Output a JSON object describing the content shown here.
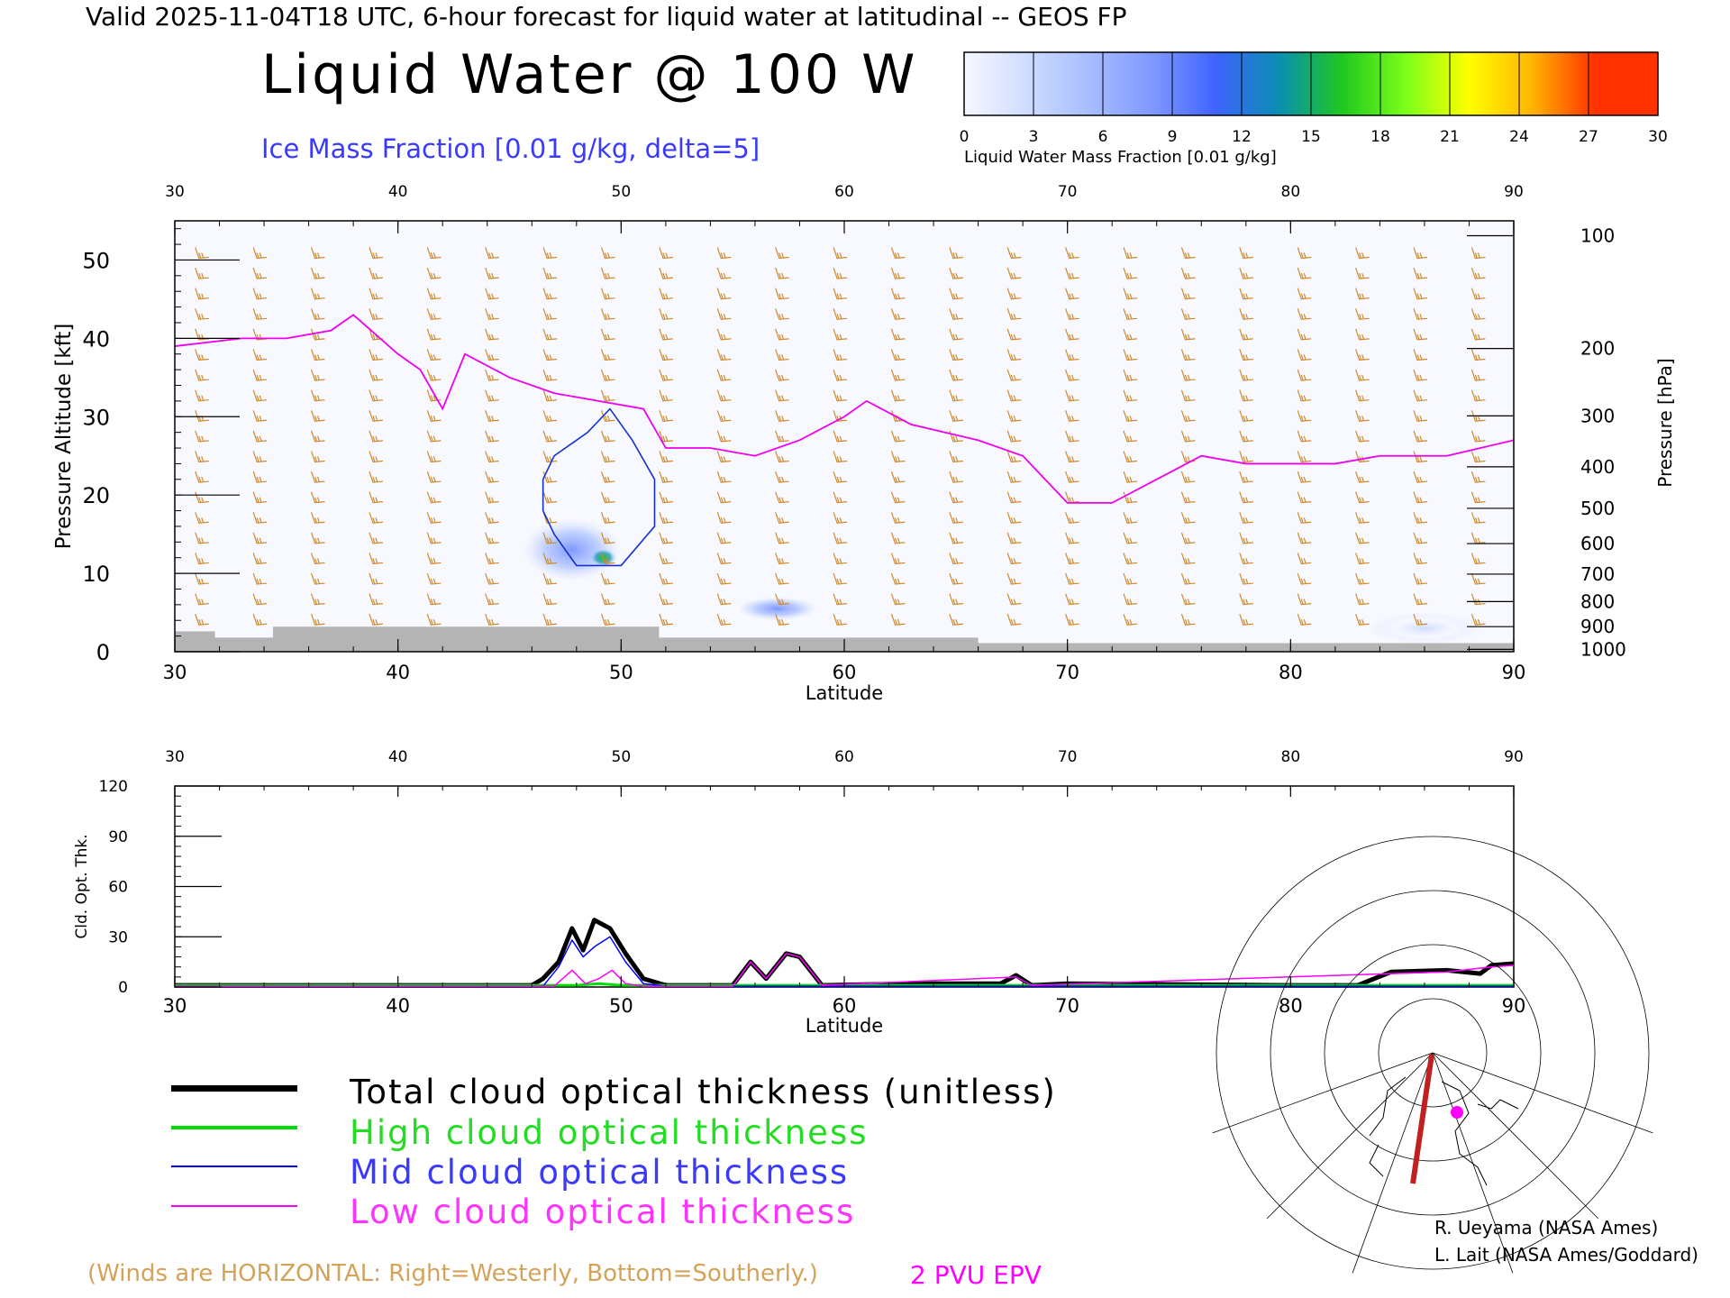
{
  "header": "Valid 2025-11-04T18 UTC, 6-hour forecast for liquid water at latitudinal -- GEOS FP",
  "title": "Liquid Water @ 100 W",
  "subtitle": "Ice Mass Fraction [0.01 g/kg, delta=5]",
  "colorbar": {
    "label": "Liquid Water Mass Fraction [0.01 g/kg]",
    "ticks": [
      "0",
      "3",
      "6",
      "9",
      "12",
      "15",
      "18",
      "21",
      "24",
      "27",
      "30"
    ],
    "colors": [
      "#f6f8ff",
      "#cfdcff",
      "#a6bdff",
      "#7f98ff",
      "#3d63ff",
      "#0b8fb0",
      "#1fc81f",
      "#7cff1a",
      "#ffff00",
      "#ffb400",
      "#ff3200"
    ]
  },
  "chart_data": [
    {
      "type": "heatmap",
      "name": "cross-section",
      "xlabel": "Latitude",
      "ylabel": "Pressure Altitude [kft]",
      "y2label": "Pressure [hPa]",
      "xlim": [
        30,
        90
      ],
      "ylim": [
        0,
        55
      ],
      "x_ticks": [
        "30",
        "40",
        "50",
        "60",
        "70",
        "80",
        "90"
      ],
      "y_ticks": [
        "0",
        "10",
        "20",
        "30",
        "40",
        "50"
      ],
      "pressure_ticks": [
        "100",
        "200",
        "300",
        "400",
        "500",
        "600",
        "700",
        "800",
        "900",
        "1000"
      ],
      "pressure_positions_kft": [
        53.1,
        38.7,
        30.1,
        23.6,
        18.3,
        13.8,
        9.9,
        6.4,
        3.2,
        0.3
      ],
      "pv_line": [
        [
          30,
          39
        ],
        [
          33,
          40
        ],
        [
          35,
          40
        ],
        [
          37,
          41
        ],
        [
          38,
          43
        ],
        [
          40,
          38
        ],
        [
          41,
          36
        ],
        [
          42,
          31
        ],
        [
          43,
          38
        ],
        [
          45,
          35
        ],
        [
          47,
          33
        ],
        [
          49,
          32
        ],
        [
          51,
          31
        ],
        [
          52,
          26
        ],
        [
          54,
          26
        ],
        [
          56,
          25
        ],
        [
          58,
          27
        ],
        [
          60,
          30
        ],
        [
          61,
          32
        ],
        [
          63,
          29
        ],
        [
          66,
          27
        ],
        [
          68,
          25
        ],
        [
          70,
          19
        ],
        [
          72,
          19
        ],
        [
          74,
          22
        ],
        [
          76,
          25
        ],
        [
          78,
          24
        ],
        [
          80,
          24
        ],
        [
          82,
          24
        ],
        [
          84,
          25
        ],
        [
          87,
          25
        ],
        [
          90,
          27
        ]
      ],
      "ice_contour": [
        [
          46.5,
          22
        ],
        [
          47,
          25
        ],
        [
          48.5,
          28
        ],
        [
          49.5,
          31
        ],
        [
          50.5,
          27
        ],
        [
          51.5,
          22
        ],
        [
          51.5,
          16
        ],
        [
          50,
          11
        ],
        [
          48,
          11
        ],
        [
          47,
          15
        ],
        [
          46.5,
          18
        ],
        [
          46.5,
          22
        ]
      ],
      "liquid_blobs": [
        {
          "lat": 47.8,
          "alt": 13,
          "rlat": 2.2,
          "ralt": 4,
          "value": 10
        },
        {
          "lat": 49.2,
          "alt": 12,
          "rlat": 0.6,
          "ralt": 1.2,
          "value": 18
        },
        {
          "lat": 57,
          "alt": 5.5,
          "rlat": 1.8,
          "ralt": 1.5,
          "value": 10
        },
        {
          "lat": 86,
          "alt": 3,
          "rlat": 2.5,
          "ralt": 2,
          "value": 4
        }
      ],
      "terrain": [
        [
          30,
          2.6
        ],
        [
          31.8,
          2.6
        ],
        [
          31.8,
          1.8
        ],
        [
          34.4,
          1.8
        ],
        [
          34.4,
          3.2
        ],
        [
          51.7,
          3.2
        ],
        [
          51.7,
          2.6
        ],
        [
          51.7,
          1.8
        ],
        [
          66,
          1.8
        ],
        [
          66,
          1.1
        ],
        [
          90,
          1.1
        ]
      ]
    },
    {
      "type": "line",
      "name": "cloud-optical-thickness",
      "xlabel": "Latitude",
      "ylabel": "Cld. Opt. Thk.",
      "xlim": [
        30,
        90
      ],
      "ylim": [
        0,
        120
      ],
      "x_ticks": [
        "30",
        "40",
        "50",
        "60",
        "70",
        "80",
        "90"
      ],
      "y_ticks": [
        "0",
        "30",
        "60",
        "90",
        "120"
      ],
      "series": [
        {
          "name": "Total cloud optical thickness (unitless)",
          "color": "#000000",
          "width": 5,
          "points": [
            [
              30,
              1
            ],
            [
              46,
              1
            ],
            [
              46.5,
              5
            ],
            [
              47.2,
              15
            ],
            [
              47.8,
              35
            ],
            [
              48.3,
              22
            ],
            [
              48.8,
              40
            ],
            [
              49.5,
              35
            ],
            [
              50.2,
              20
            ],
            [
              51,
              5
            ],
            [
              52,
              1
            ],
            [
              55,
              1
            ],
            [
              55.8,
              15
            ],
            [
              56.5,
              5
            ],
            [
              57.4,
              20
            ],
            [
              58,
              18
            ],
            [
              59,
              1
            ],
            [
              63,
              2
            ],
            [
              67,
              2
            ],
            [
              67.7,
              7
            ],
            [
              68.4,
              1
            ],
            [
              70,
              2
            ],
            [
              80,
              1
            ],
            [
              83,
              1
            ],
            [
              84.5,
              9
            ],
            [
              87,
              10
            ],
            [
              88.5,
              8
            ],
            [
              89,
              13
            ],
            [
              90,
              14
            ]
          ]
        },
        {
          "name": "High cloud optical thickness",
          "color": "#00dd00",
          "width": 3,
          "points": [
            [
              30,
              1
            ],
            [
              48,
              1
            ],
            [
              49,
              2
            ],
            [
              50,
              1
            ],
            [
              90,
              1
            ]
          ]
        },
        {
          "name": "Mid cloud optical thickness",
          "color": "#0000ff",
          "width": 1.5,
          "points": [
            [
              30,
              0.5
            ],
            [
              46.5,
              0.5
            ],
            [
              47.2,
              12
            ],
            [
              47.8,
              28
            ],
            [
              48.3,
              18
            ],
            [
              48.8,
              24
            ],
            [
              49.5,
              30
            ],
            [
              50.2,
              15
            ],
            [
              51,
              2
            ],
            [
              52,
              0.5
            ],
            [
              90,
              0.5
            ]
          ]
        },
        {
          "name": "Low cloud optical thickness",
          "color": "#ff00ff",
          "width": 1.5,
          "points": [
            [
              30,
              0.5
            ],
            [
              47,
              0.5
            ],
            [
              47.8,
              10
            ],
            [
              48.4,
              2
            ],
            [
              49,
              5
            ],
            [
              49.6,
              10
            ],
            [
              50.2,
              2
            ],
            [
              51,
              0.5
            ],
            [
              55,
              0.5
            ],
            [
              55.8,
              15
            ],
            [
              56.5,
              5
            ],
            [
              57.4,
              20
            ],
            [
              58,
              18
            ],
            [
              59,
              1
            ],
            [
              67.7,
              6
            ],
            [
              68.4,
              1
            ],
            [
              84.5,
              8
            ],
            [
              87,
              9
            ],
            [
              89,
              12
            ],
            [
              90,
              13
            ]
          ]
        }
      ]
    }
  ],
  "legend": [
    {
      "label": "Total cloud optical thickness (unitless)",
      "color": "#000000"
    },
    {
      "label": "High cloud optical thickness",
      "color": "#00dd00"
    },
    {
      "label": "Mid cloud optical thickness",
      "color": "#0000ff"
    },
    {
      "label": "Low cloud optical thickness",
      "color": "#ff00ff"
    }
  ],
  "footer": {
    "winds_note": "(Winds are HORIZONTAL: Right=Westerly, Bottom=Southerly.)",
    "epv_label": "2 PVU EPV",
    "credit_1": "R. Ueyama (NASA Ames)",
    "credit_2": "L. Lait (NASA Ames/Goddard)"
  }
}
